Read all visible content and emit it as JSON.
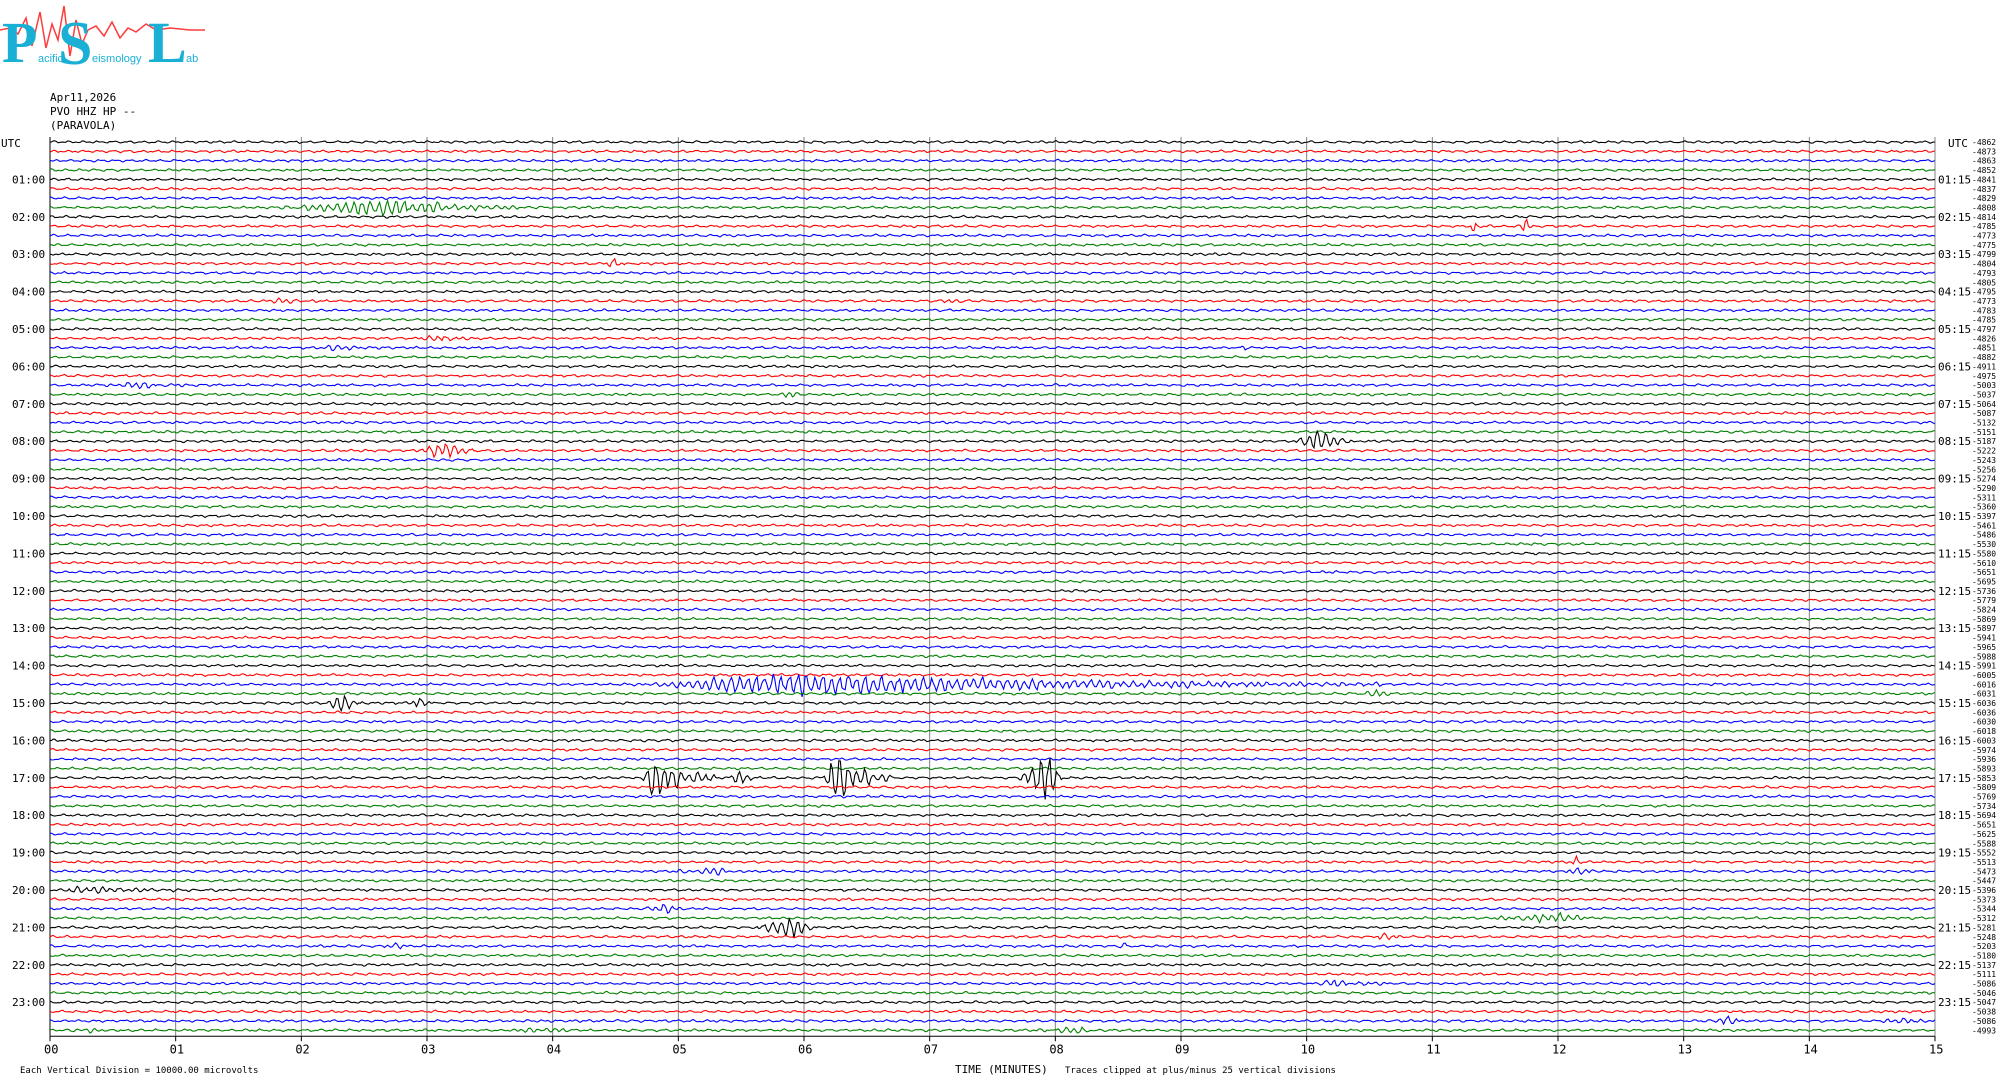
{
  "logo": {
    "big_letters": [
      "P",
      "S",
      "L"
    ],
    "small_words": [
      "acific",
      "eismology",
      "ab"
    ]
  },
  "header": {
    "date": "Apr11,2026",
    "station": "PVO HHZ HP --",
    "location": "(PARAVOLA)"
  },
  "chart_data": {
    "type": "helicorder",
    "left_axis_title": "UTC",
    "right_axis_title": "UTC",
    "left_hour_labels": [
      "01:00",
      "02:00",
      "03:00",
      "04:00",
      "05:00",
      "06:00",
      "07:00",
      "08:00",
      "09:00",
      "10:00",
      "11:00",
      "12:00",
      "13:00",
      "14:00",
      "15:00",
      "16:00",
      "17:00",
      "18:00",
      "19:00",
      "20:00",
      "21:00",
      "22:00",
      "23:00"
    ],
    "right_hour_labels": [
      "01:15",
      "02:15",
      "03:15",
      "04:15",
      "05:15",
      "06:15",
      "07:15",
      "08:15",
      "09:15",
      "10:15",
      "11:15",
      "12:15",
      "13:15",
      "14:15",
      "15:15",
      "16:15",
      "17:15",
      "18:15",
      "19:15",
      "20:15",
      "21:15",
      "22:15",
      "23:15"
    ],
    "x_tick_labels": [
      "00",
      "01",
      "02",
      "03",
      "04",
      "05",
      "06",
      "07",
      "08",
      "09",
      "10",
      "11",
      "12",
      "13",
      "14",
      "15"
    ],
    "x_range": [
      0,
      15
    ],
    "x_axis_label": "TIME (MINUTES)",
    "trace_count": 96,
    "trace_minutes": 15,
    "trace_colors": [
      "#000000",
      "#ff0000",
      "#0000ff",
      "#008000"
    ],
    "grid_color": "#808080",
    "grid": true,
    "footer_left": "Each Vertical Division = 10000.00 microvolts",
    "footer_right": "Traces clipped at plus/minus 25 vertical divisions",
    "right_counts": [
      "-4862",
      "-4873",
      "-4863",
      "-4852",
      "-4841",
      "-4837",
      "-4829",
      "-4808",
      "-4814",
      "-4785",
      "-4773",
      "-4775",
      "-4799",
      "-4804",
      "-4793",
      "-4805",
      "-4795",
      "-4773",
      "-4783",
      "-4785",
      "-4797",
      "-4826",
      "-4851",
      "-4882",
      "-4911",
      "-4975",
      "-5003",
      "-5037",
      "-5064",
      "-5087",
      "-5132",
      "-5151",
      "-5187",
      "-5222",
      "-5243",
      "-5256",
      "-5274",
      "-5290",
      "-5311",
      "-5360",
      "-5397",
      "-5461",
      "-5486",
      "-5530",
      "-5580",
      "-5610",
      "-5651",
      "-5695",
      "-5736",
      "-5779",
      "-5824",
      "-5869",
      "-5897",
      "-5941",
      "-5965",
      "-5988",
      "-5991",
      "-6005",
      "-6016",
      "-6031",
      "-6036",
      "-6036",
      "-6030",
      "-6018",
      "-6003",
      "-5974",
      "-5936",
      "-5893",
      "-5853",
      "-5809",
      "-5769",
      "-5734",
      "-5694",
      "-5651",
      "-5625",
      "-5588",
      "-5552",
      "-5513",
      "-5473",
      "-5447",
      "-5396",
      "-5373",
      "-5344",
      "-5312",
      "-5281",
      "-5248",
      "-5203",
      "-5180",
      "-5137",
      "-5111",
      "-5086",
      "-5046",
      "-5047",
      "-5038",
      "-5086",
      "-4993"
    ],
    "events": [
      {
        "trace": 7,
        "start_min": 1.8,
        "end_min": 3.9,
        "peak_min": 2.7,
        "amplitude_div": 0.9
      },
      {
        "trace": 9,
        "start_min": 11.3,
        "end_min": 11.35,
        "peak_min": 11.33,
        "amplitude_div": 1.1
      },
      {
        "trace": 9,
        "start_min": 11.7,
        "end_min": 11.8,
        "peak_min": 11.75,
        "amplitude_div": 1.3
      },
      {
        "trace": 13,
        "start_min": 4.4,
        "end_min": 4.6,
        "peak_min": 4.5,
        "amplitude_div": 0.5
      },
      {
        "trace": 17,
        "start_min": 1.6,
        "end_min": 2.2,
        "peak_min": 1.9,
        "amplitude_div": 0.3
      },
      {
        "trace": 17,
        "start_min": 7.1,
        "end_min": 7.3,
        "peak_min": 7.2,
        "amplitude_div": 0.4
      },
      {
        "trace": 21,
        "start_min": 2.9,
        "end_min": 3.4,
        "peak_min": 3.1,
        "amplitude_div": 0.4
      },
      {
        "trace": 22,
        "start_min": 2.1,
        "end_min": 2.5,
        "peak_min": 2.3,
        "amplitude_div": 0.4
      },
      {
        "trace": 22,
        "start_min": 9.4,
        "end_min": 9.6,
        "peak_min": 9.5,
        "amplitude_div": 0.3
      },
      {
        "trace": 26,
        "start_min": 0.4,
        "end_min": 1.1,
        "peak_min": 0.7,
        "amplitude_div": 0.4
      },
      {
        "trace": 27,
        "start_min": 5.8,
        "end_min": 6.0,
        "peak_min": 5.9,
        "amplitude_div": 0.4
      },
      {
        "trace": 33,
        "start_min": 2.9,
        "end_min": 3.4,
        "peak_min": 3.1,
        "amplitude_div": 1.1
      },
      {
        "trace": 32,
        "start_min": 9.9,
        "end_min": 10.4,
        "peak_min": 10.05,
        "amplitude_div": 1.3
      },
      {
        "trace": 58,
        "start_min": 4.6,
        "end_min": 10.6,
        "peak_min": 5.95,
        "amplitude_div": 1.3
      },
      {
        "trace": 59,
        "start_min": 10.4,
        "end_min": 10.7,
        "peak_min": 10.55,
        "amplitude_div": 0.4
      },
      {
        "trace": 60,
        "start_min": 2.2,
        "end_min": 2.5,
        "peak_min": 2.33,
        "amplitude_div": 1.2
      },
      {
        "trace": 60,
        "start_min": 2.85,
        "end_min": 3.1,
        "peak_min": 2.95,
        "amplitude_div": 0.6
      },
      {
        "trace": 68,
        "start_min": 4.7,
        "end_min": 5.3,
        "peak_min": 4.8,
        "amplitude_div": 2.6
      },
      {
        "trace": 68,
        "start_min": 5.4,
        "end_min": 5.6,
        "peak_min": 5.5,
        "amplitude_div": 0.8
      },
      {
        "trace": 68,
        "start_min": 6.15,
        "end_min": 6.7,
        "peak_min": 6.25,
        "amplitude_div": 2.6
      },
      {
        "trace": 68,
        "start_min": 7.7,
        "end_min": 8.05,
        "peak_min": 7.95,
        "amplitude_div": 2.5
      },
      {
        "trace": 77,
        "start_min": 12.1,
        "end_min": 12.2,
        "peak_min": 12.15,
        "amplitude_div": 0.6
      },
      {
        "trace": 78,
        "start_min": 4.9,
        "end_min": 5.6,
        "peak_min": 5.3,
        "amplitude_div": 0.4
      },
      {
        "trace": 78,
        "start_min": 12.0,
        "end_min": 12.4,
        "peak_min": 12.2,
        "amplitude_div": 0.4
      },
      {
        "trace": 80,
        "start_min": 0.1,
        "end_min": 1.4,
        "peak_min": 0.2,
        "amplitude_div": 0.4
      },
      {
        "trace": 82,
        "start_min": 4.7,
        "end_min": 5.1,
        "peak_min": 4.9,
        "amplitude_div": 0.5
      },
      {
        "trace": 83,
        "start_min": 11.4,
        "end_min": 12.3,
        "peak_min": 12.05,
        "amplitude_div": 0.5
      },
      {
        "trace": 84,
        "start_min": 5.6,
        "end_min": 6.1,
        "peak_min": 5.95,
        "amplitude_div": 1.3
      },
      {
        "trace": 85,
        "start_min": 10.5,
        "end_min": 10.8,
        "peak_min": 10.6,
        "amplitude_div": 0.4
      },
      {
        "trace": 86,
        "start_min": 8.5,
        "end_min": 8.6,
        "peak_min": 8.55,
        "amplitude_div": 0.4
      },
      {
        "trace": 86,
        "start_min": 2.6,
        "end_min": 2.9,
        "peak_min": 2.75,
        "amplitude_div": 0.3
      },
      {
        "trace": 90,
        "start_min": 10.0,
        "end_min": 10.8,
        "peak_min": 10.2,
        "amplitude_div": 0.4
      },
      {
        "trace": 94,
        "start_min": 13.2,
        "end_min": 13.5,
        "peak_min": 13.35,
        "amplitude_div": 0.5
      },
      {
        "trace": 94,
        "start_min": 14.5,
        "end_min": 15.0,
        "peak_min": 14.8,
        "amplitude_div": 0.3
      },
      {
        "trace": 95,
        "start_min": 7.8,
        "end_min": 8.4,
        "peak_min": 8.2,
        "amplitude_div": 0.4
      },
      {
        "trace": 95,
        "start_min": 0.1,
        "end_min": 0.6,
        "peak_min": 0.3,
        "amplitude_div": 0.3
      },
      {
        "trace": 95,
        "start_min": 3.6,
        "end_min": 4.2,
        "peak_min": 4.0,
        "amplitude_div": 0.3
      }
    ]
  }
}
